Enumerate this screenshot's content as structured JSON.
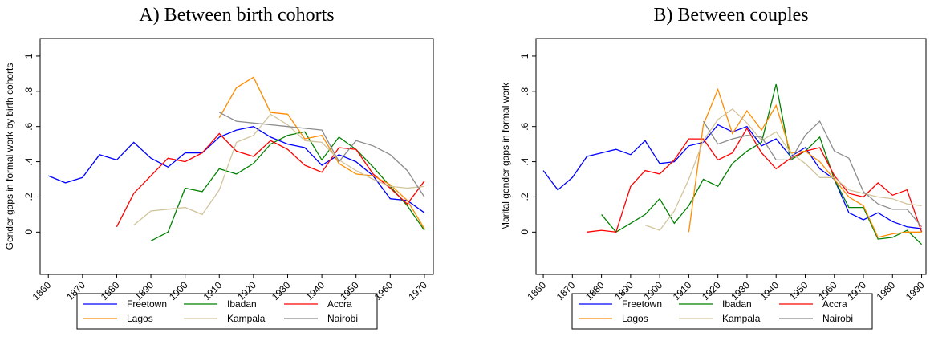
{
  "chart_data": [
    {
      "type": "line",
      "title": "A) Between birth cohorts",
      "ylabel": "Gender gaps in formal work by birth cohorts",
      "x": [
        1860,
        1865,
        1870,
        1875,
        1880,
        1885,
        1890,
        1895,
        1900,
        1905,
        1910,
        1915,
        1920,
        1925,
        1930,
        1935,
        1940,
        1945,
        1950,
        1955,
        1960,
        1965,
        1970
      ],
      "xlim": [
        1857.6,
        1972.6
      ],
      "xticks": [
        1860,
        1870,
        1880,
        1890,
        1900,
        1910,
        1920,
        1930,
        1940,
        1950,
        1960,
        1970
      ],
      "ylim": [
        -0.24,
        1.1
      ],
      "yticks": [
        0,
        {
          "value": 0.2,
          "label": ".2"
        },
        {
          "value": 0.4,
          "label": ".4"
        },
        {
          "value": 0.6,
          "label": ".6"
        },
        {
          "value": 0.8,
          "label": ".8"
        },
        1
      ],
      "series": [
        {
          "name": "Freetown",
          "color": "#0000ff",
          "values": [
            0.32,
            0.28,
            0.31,
            0.44,
            0.41,
            0.51,
            0.42,
            0.37,
            0.45,
            0.45,
            0.54,
            0.58,
            0.6,
            0.54,
            0.5,
            0.48,
            0.38,
            0.44,
            0.4,
            0.32,
            0.19,
            0.18,
            0.11
          ]
        },
        {
          "name": "Ibadan",
          "color": "#008000",
          "values": [
            null,
            null,
            null,
            null,
            null,
            null,
            -0.05,
            0.0,
            0.25,
            0.23,
            0.36,
            0.33,
            0.39,
            0.5,
            0.55,
            0.57,
            0.41,
            0.54,
            0.47,
            0.37,
            0.26,
            0.15,
            0.01
          ]
        },
        {
          "name": "Accra",
          "color": "#ff0000",
          "values": [
            null,
            null,
            null,
            null,
            0.03,
            0.22,
            0.32,
            0.42,
            0.4,
            0.45,
            0.56,
            0.46,
            0.43,
            0.52,
            0.47,
            0.38,
            0.34,
            0.48,
            0.47,
            0.33,
            0.25,
            0.16,
            0.29
          ]
        },
        {
          "name": "Lagos",
          "color": "#ff8c00",
          "values": [
            null,
            null,
            null,
            null,
            null,
            null,
            null,
            null,
            null,
            null,
            0.65,
            0.82,
            0.88,
            0.68,
            0.67,
            0.53,
            0.55,
            0.39,
            0.33,
            0.32,
            0.27,
            0.18,
            0.02
          ]
        },
        {
          "name": "Kampala",
          "color": "#d2c49c",
          "values": [
            null,
            null,
            null,
            null,
            null,
            0.04,
            0.12,
            0.13,
            0.14,
            0.1,
            0.24,
            0.51,
            0.55,
            0.67,
            0.61,
            0.52,
            0.51,
            0.41,
            0.35,
            0.3,
            0.26,
            0.25,
            0.26
          ]
        },
        {
          "name": "Nairobi",
          "color": "#8c8c8c",
          "values": [
            null,
            null,
            null,
            null,
            null,
            null,
            null,
            null,
            null,
            null,
            0.68,
            0.63,
            0.62,
            0.61,
            0.6,
            0.59,
            0.58,
            0.4,
            0.52,
            0.49,
            0.44,
            0.35,
            0.2
          ]
        }
      ]
    },
    {
      "type": "line",
      "title": "B) Between couples",
      "ylabel": "Marital gender gaps in formal work",
      "x": [
        1860,
        1865,
        1870,
        1875,
        1880,
        1885,
        1890,
        1895,
        1900,
        1905,
        1910,
        1915,
        1920,
        1925,
        1930,
        1935,
        1940,
        1945,
        1950,
        1955,
        1960,
        1965,
        1970,
        1975,
        1980,
        1985,
        1990
      ],
      "xlim": [
        1857.5,
        1991.5
      ],
      "xticks": [
        1860,
        1870,
        1880,
        1890,
        1900,
        1910,
        1920,
        1930,
        1940,
        1950,
        1960,
        1970,
        1980,
        1990
      ],
      "ylim": [
        -0.24,
        1.1
      ],
      "yticks": [
        0,
        {
          "value": 0.2,
          "label": ".2"
        },
        {
          "value": 0.4,
          "label": ".4"
        },
        {
          "value": 0.6,
          "label": ".6"
        },
        {
          "value": 0.8,
          "label": ".8"
        },
        1
      ],
      "series": [
        {
          "name": "Freetown",
          "color": "#0000ff",
          "values": [
            0.35,
            0.24,
            0.31,
            0.43,
            0.45,
            0.47,
            0.44,
            0.52,
            0.39,
            0.4,
            0.49,
            0.51,
            0.61,
            0.57,
            0.6,
            0.49,
            0.53,
            0.43,
            0.48,
            0.36,
            0.3,
            0.11,
            0.07,
            0.11,
            0.06,
            0.03,
            0.02
          ]
        },
        {
          "name": "Ibadan",
          "color": "#008000",
          "values": [
            null,
            null,
            null,
            null,
            0.1,
            0.0,
            0.05,
            0.1,
            0.19,
            0.05,
            0.15,
            0.3,
            0.26,
            0.39,
            0.46,
            0.51,
            0.84,
            0.41,
            0.46,
            0.54,
            0.3,
            0.14,
            0.14,
            -0.04,
            -0.03,
            0.01,
            -0.07
          ]
        },
        {
          "name": "Accra",
          "color": "#ff0000",
          "values": [
            null,
            null,
            null,
            0.0,
            0.01,
            0.0,
            0.26,
            0.35,
            0.33,
            0.41,
            0.53,
            0.53,
            0.41,
            0.45,
            0.59,
            0.45,
            0.36,
            0.42,
            0.46,
            0.48,
            0.32,
            0.22,
            0.2,
            0.28,
            0.21,
            0.24,
            0.0
          ]
        },
        {
          "name": "Lagos",
          "color": "#ff8c00",
          "values": [
            null,
            null,
            null,
            null,
            null,
            null,
            null,
            null,
            null,
            null,
            0.0,
            0.61,
            0.81,
            0.56,
            0.69,
            0.58,
            0.72,
            0.45,
            0.46,
            0.4,
            0.3,
            0.2,
            0.15,
            -0.03,
            -0.01,
            0.0,
            0.0
          ]
        },
        {
          "name": "Kampala",
          "color": "#d2c49c",
          "values": [
            null,
            null,
            null,
            null,
            null,
            null,
            null,
            0.04,
            0.01,
            0.12,
            0.3,
            0.52,
            0.64,
            0.7,
            0.62,
            0.52,
            0.57,
            0.45,
            0.39,
            0.31,
            0.31,
            0.24,
            0.22,
            0.2,
            0.19,
            0.16,
            0.15
          ]
        },
        {
          "name": "Nairobi",
          "color": "#8c8c8c",
          "values": [
            null,
            null,
            null,
            null,
            null,
            null,
            null,
            null,
            null,
            null,
            null,
            0.63,
            0.5,
            0.53,
            0.55,
            0.54,
            0.41,
            0.41,
            0.55,
            0.63,
            0.46,
            0.42,
            0.23,
            0.16,
            0.13,
            0.13,
            0.03
          ]
        }
      ]
    }
  ]
}
